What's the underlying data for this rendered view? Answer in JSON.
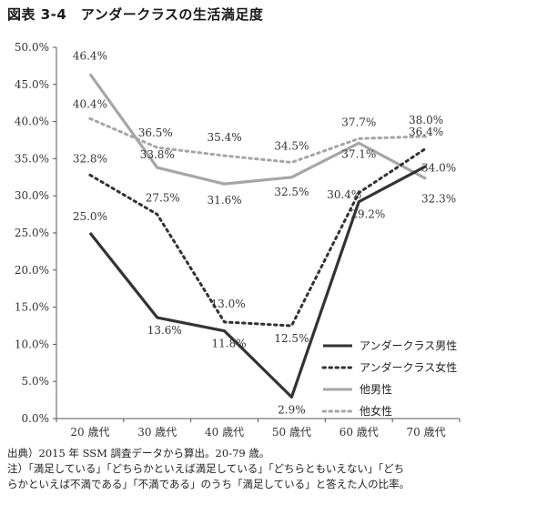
{
  "title": "図表 3-4　アンダークラスの生活満足度",
  "chart_data": {
    "type": "line",
    "categories": [
      "20 歳代",
      "30 歳代",
      "40 歳代",
      "50 歳代",
      "60 歳代",
      "70 歳代"
    ],
    "ylim": [
      0,
      50
    ],
    "yticks": [
      "0.0%",
      "5.0%",
      "10.0%",
      "15.0%",
      "20.0%",
      "25.0%",
      "30.0%",
      "35.0%",
      "40.0%",
      "45.0%",
      "50.0%"
    ],
    "grid": false,
    "legend_position": "bottom-right",
    "series": [
      {
        "name": "アンダークラス男性",
        "values": [
          25.0,
          13.6,
          11.8,
          2.9,
          29.2,
          34.0
        ],
        "labels": [
          "25.0%",
          "13.6%",
          "11.8%",
          "2.9%",
          "29.2%",
          "34.0%"
        ],
        "color": "#333333",
        "style": "solid"
      },
      {
        "name": "アンダークラス女性",
        "values": [
          32.8,
          27.5,
          13.0,
          12.5,
          30.4,
          36.4
        ],
        "labels": [
          "32.8%",
          "27.5%",
          "13.0%",
          "12.5%",
          "30.4%",
          "36.4%"
        ],
        "color": "#333333",
        "style": "dotted"
      },
      {
        "name": "他男性",
        "values": [
          46.4,
          33.8,
          31.6,
          32.5,
          37.1,
          32.3
        ],
        "labels": [
          "46.4%",
          "33.8%",
          "31.6%",
          "32.5%",
          "37.1%",
          "32.3%"
        ],
        "color": "#a6a6a6",
        "style": "solid"
      },
      {
        "name": "他女性",
        "values": [
          40.4,
          36.5,
          35.4,
          34.5,
          37.7,
          38.0
        ],
        "labels": [
          "40.4%",
          "36.5%",
          "35.4%",
          "34.5%",
          "37.7%",
          "38.0%"
        ],
        "color": "#a6a6a6",
        "style": "dotted"
      }
    ]
  },
  "notes": [
    "出典）2015 年 SSM 調査データから算出。20-79 歳。",
    "注）「満足している」「どちらかといえば満足している」「どちらともいえない」「どち",
    "らかといえば不満である」「不満である」のうち「満足している」と答えた人の比率。"
  ]
}
